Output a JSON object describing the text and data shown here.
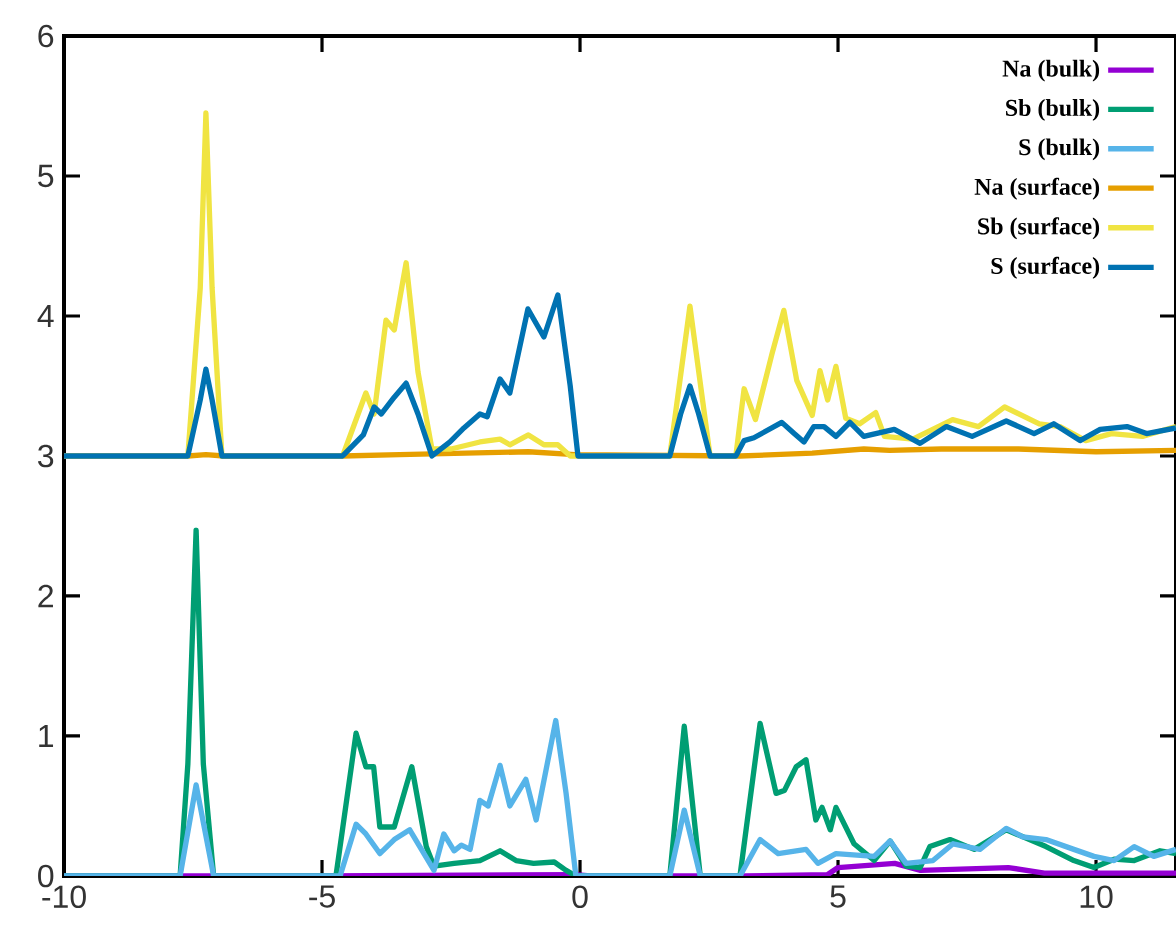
{
  "chart_data": {
    "type": "line",
    "xlim": [
      -10,
      11.55
    ],
    "ylim": [
      0,
      6
    ],
    "xticks": [
      -10,
      -5,
      0,
      5,
      10
    ],
    "yticks": [
      0,
      1,
      2,
      3,
      4,
      5,
      6
    ],
    "grid": false,
    "legend": "top right",
    "marker": "none",
    "line_style": "solid",
    "series": [
      {
        "name": "Na (bulk)",
        "color": "#9400d3",
        "x": [
          -10,
          -5,
          -0.1,
          0.2,
          3.2,
          4.8,
          5.0,
          6.1,
          6.6,
          8.3,
          9.0,
          11.55
        ],
        "values": [
          0,
          0,
          0.01,
          0,
          0,
          0.01,
          0.06,
          0.09,
          0.04,
          0.06,
          0.02,
          0.02
        ]
      },
      {
        "name": "Sb (bulk)",
        "color": "#009e73",
        "x": [
          -10,
          -7.75,
          -7.6,
          -7.44,
          -7.3,
          -7.1,
          -4.73,
          -4.34,
          -4.15,
          -4.0,
          -3.88,
          -3.6,
          -3.26,
          -2.98,
          -2.83,
          -2.44,
          -1.94,
          -1.55,
          -1.24,
          -0.9,
          -0.5,
          -0.27,
          -0.08,
          1.74,
          2.02,
          2.33,
          3.1,
          3.49,
          3.8,
          3.96,
          4.19,
          4.38,
          4.57,
          4.69,
          4.85,
          4.96,
          5.31,
          5.7,
          6.01,
          6.32,
          6.59,
          6.78,
          7.17,
          7.64,
          8.26,
          9.03,
          9.57,
          9.96,
          10.35,
          10.74,
          11.24,
          11.55
        ],
        "values": [
          0,
          0,
          0.8,
          2.47,
          0.8,
          0,
          0,
          1.02,
          0.78,
          0.78,
          0.35,
          0.35,
          0.78,
          0.21,
          0.07,
          0.09,
          0.11,
          0.18,
          0.11,
          0.09,
          0.1,
          0.04,
          0,
          0,
          1.07,
          0,
          0,
          1.09,
          0.59,
          0.61,
          0.78,
          0.83,
          0.4,
          0.49,
          0.33,
          0.49,
          0.23,
          0.11,
          0.25,
          0.07,
          0.06,
          0.21,
          0.26,
          0.19,
          0.33,
          0.21,
          0.11,
          0.06,
          0.12,
          0.11,
          0.18,
          0.16
        ]
      },
      {
        "name": "S (bulk)",
        "color": "#56b4e9",
        "x": [
          -10,
          -7.75,
          -7.44,
          -7.1,
          -4.65,
          -4.34,
          -4.15,
          -3.88,
          -3.6,
          -3.3,
          -2.83,
          -2.64,
          -2.44,
          -2.3,
          -2.13,
          -1.94,
          -1.78,
          -1.55,
          -1.36,
          -1.05,
          -0.85,
          -0.47,
          -0.27,
          -0.08,
          1.74,
          2.02,
          2.33,
          3.1,
          3.49,
          3.84,
          4.38,
          4.61,
          4.96,
          5.7,
          6.01,
          6.32,
          6.84,
          7.23,
          7.75,
          8.26,
          8.58,
          9.03,
          9.57,
          9.96,
          10.35,
          10.74,
          11.12,
          11.55
        ],
        "values": [
          0,
          0,
          0.65,
          0,
          0,
          0.37,
          0.3,
          0.16,
          0.26,
          0.33,
          0.04,
          0.3,
          0.18,
          0.22,
          0.19,
          0.54,
          0.5,
          0.79,
          0.5,
          0.69,
          0.4,
          1.11,
          0.59,
          0,
          0,
          0.47,
          0,
          0,
          0.26,
          0.16,
          0.19,
          0.09,
          0.16,
          0.14,
          0.25,
          0.09,
          0.11,
          0.23,
          0.19,
          0.34,
          0.28,
          0.26,
          0.19,
          0.14,
          0.11,
          0.21,
          0.14,
          0.19
        ]
      },
      {
        "name": "Na (surface)",
        "color": "#e69f00",
        "x": [
          -10,
          -7.6,
          -7.25,
          -6.9,
          -4.6,
          -3.5,
          -1.0,
          -0.1,
          0.3,
          3.1,
          4.5,
          5.5,
          6.0,
          7.0,
          8.5,
          10.0,
          11.55
        ],
        "values": [
          3,
          3,
          3.01,
          3,
          3,
          3.01,
          3.03,
          3.01,
          null,
          3,
          3.02,
          3.05,
          3.04,
          3.05,
          3.05,
          3.03,
          3.04
        ]
      },
      {
        "name": "Sb (surface)",
        "color": "#f0e442",
        "x": [
          -10,
          -7.6,
          -7.36,
          -7.25,
          -7.13,
          -6.94,
          -4.6,
          -4.15,
          -3.99,
          -3.76,
          -3.6,
          -3.37,
          -3.14,
          -2.87,
          -2.5,
          -1.94,
          -1.55,
          -1.36,
          -1.0,
          -0.7,
          -0.43,
          -0.19,
          -0.04,
          1.74,
          2.13,
          2.52,
          3.02,
          3.18,
          3.4,
          3.72,
          3.95,
          4.2,
          4.5,
          4.65,
          4.8,
          4.96,
          5.15,
          5.42,
          5.73,
          5.9,
          6.45,
          7.22,
          7.72,
          8.23,
          8.9,
          9.3,
          9.8,
          10.3,
          10.9,
          11.55
        ],
        "values": [
          3,
          3,
          4.2,
          5.45,
          4.2,
          3,
          3,
          3.45,
          3.3,
          3.97,
          3.9,
          4.38,
          3.6,
          3.05,
          3.05,
          3.1,
          3.12,
          3.08,
          3.15,
          3.08,
          3.08,
          3.0,
          3.0,
          3.0,
          4.07,
          3.0,
          3.0,
          3.48,
          3.26,
          3.73,
          4.04,
          3.54,
          3.29,
          3.61,
          3.4,
          3.64,
          3.27,
          3.23,
          3.31,
          3.14,
          3.12,
          3.26,
          3.21,
          3.35,
          3.23,
          3.21,
          3.11,
          3.16,
          3.14,
          3.21
        ]
      },
      {
        "name": "S (surface)",
        "color": "#0072b2",
        "x": [
          -10,
          -7.6,
          -7.36,
          -7.25,
          -7.13,
          -6.94,
          -4.6,
          -4.2,
          -3.99,
          -3.85,
          -3.6,
          -3.37,
          -3.14,
          -2.87,
          -2.52,
          -2.25,
          -1.94,
          -1.8,
          -1.55,
          -1.36,
          -1.01,
          -0.7,
          -0.43,
          -0.19,
          -0.04,
          1.74,
          1.95,
          2.13,
          2.3,
          2.52,
          3.02,
          3.18,
          3.37,
          3.91,
          4.15,
          4.34,
          4.53,
          4.73,
          4.96,
          5.23,
          5.5,
          6.09,
          6.59,
          7.1,
          7.6,
          8.26,
          8.8,
          9.18,
          9.69,
          10.08,
          10.6,
          10.98,
          11.55
        ],
        "values": [
          3,
          3,
          3.4,
          3.62,
          3.4,
          3,
          3,
          3.15,
          3.35,
          3.3,
          3.42,
          3.52,
          3.3,
          3.0,
          3.1,
          3.2,
          3.3,
          3.28,
          3.55,
          3.45,
          4.05,
          3.85,
          4.15,
          3.5,
          3.0,
          3.0,
          3.3,
          3.5,
          3.3,
          3.0,
          3.0,
          3.11,
          3.13,
          3.24,
          3.16,
          3.1,
          3.21,
          3.21,
          3.14,
          3.24,
          3.14,
          3.19,
          3.09,
          3.21,
          3.14,
          3.25,
          3.16,
          3.23,
          3.11,
          3.19,
          3.21,
          3.16,
          3.2
        ]
      }
    ]
  }
}
